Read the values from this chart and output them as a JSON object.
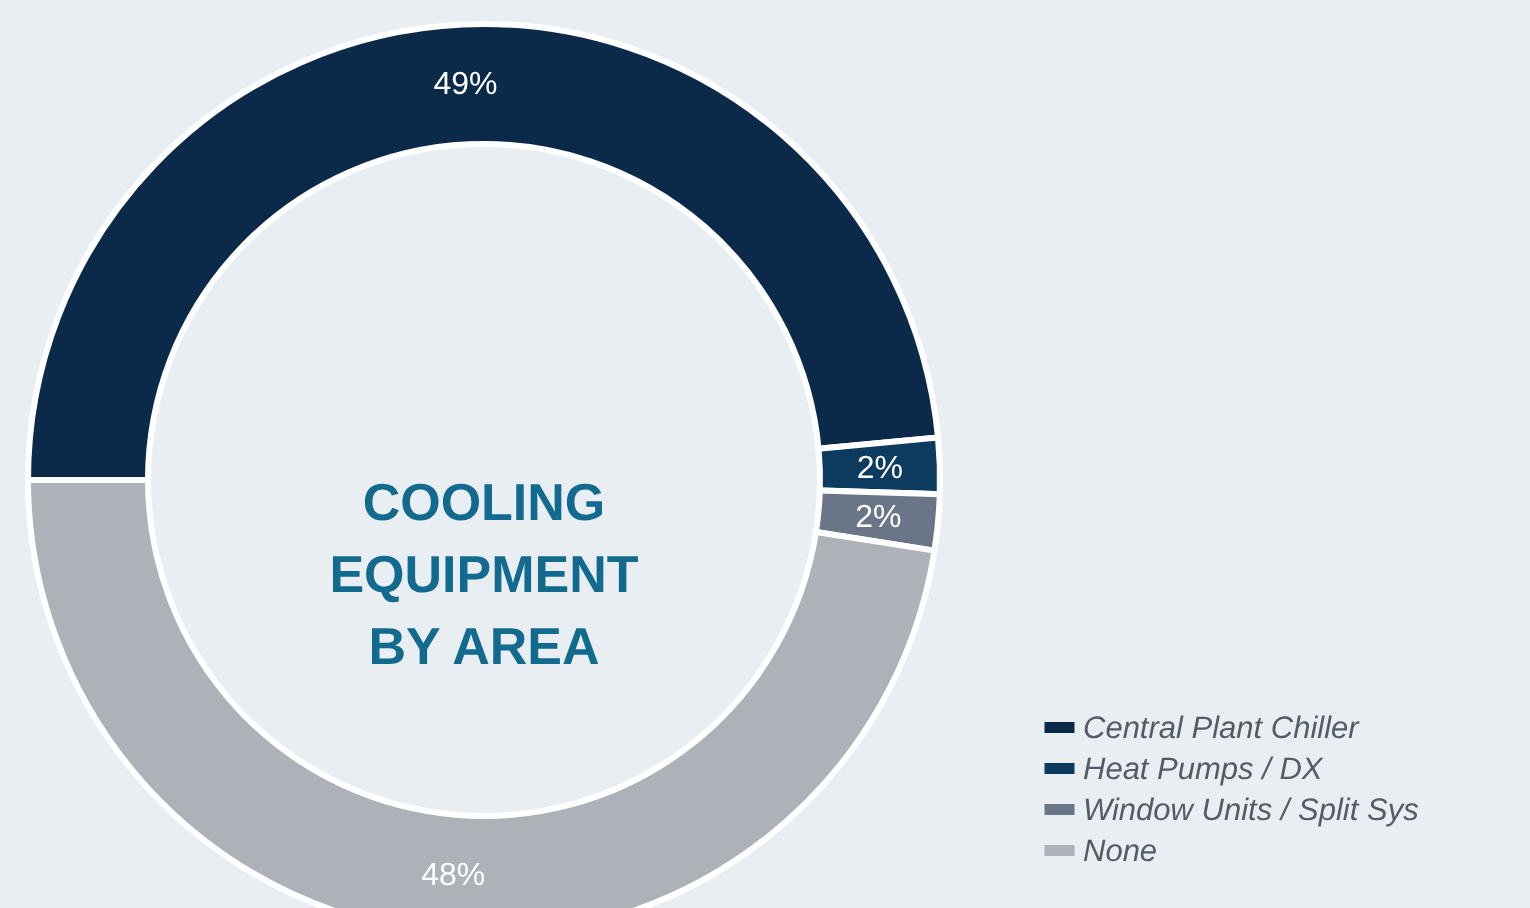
{
  "chart_data": {
    "type": "donut",
    "title": "COOLING\nEQUIPMENT\nBY AREA",
    "categories": [
      "Central Plant Chiller",
      "Heat Pumps / DX",
      "Window Units / Split Sys",
      "None"
    ],
    "values": [
      49,
      2,
      2,
      48
    ],
    "colors": [
      "#0b2a4a",
      "#0d3a5f",
      "#6a7588",
      "#adb1b8"
    ],
    "value_labels": [
      "49%",
      "2%",
      "2%",
      "48%"
    ],
    "legend": "bottom right"
  }
}
